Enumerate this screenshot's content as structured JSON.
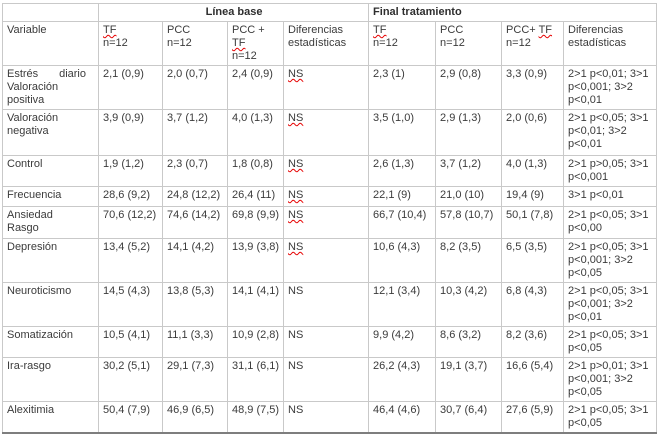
{
  "colors": {
    "spellcheck_underline": "#e60000",
    "grid_border": "#c9c9c9",
    "bottom_border": "#7e7e7e",
    "text": "#3b3b3b"
  },
  "table": {
    "group_headers": [
      {
        "label": "",
        "span": 1,
        "align": "left"
      },
      {
        "label": "Línea base",
        "span": 4,
        "align": "center"
      },
      {
        "label": "Final tratamiento",
        "span": 4,
        "align": "left"
      }
    ],
    "column_headers": [
      {
        "text": "Variable",
        "sub": "",
        "squiggle": ""
      },
      {
        "text": "TF",
        "sub": "n=12",
        "squiggle": "TF"
      },
      {
        "text": "PCC",
        "sub": "n=12",
        "squiggle": ""
      },
      {
        "text": "PCC + TF",
        "sub": "n=12",
        "squiggle": "TF"
      },
      {
        "text": "Diferencias estadísticas",
        "sub": "",
        "squiggle": ""
      },
      {
        "text": "TF",
        "sub": "n=12",
        "squiggle": "TF"
      },
      {
        "text": "PCC",
        "sub": "n=12",
        "squiggle": ""
      },
      {
        "text": "PCC+ TF",
        "sub": "n=12",
        "squiggle": "TF"
      },
      {
        "text": "Diferencias estadísticas",
        "sub": "",
        "squiggle": ""
      }
    ],
    "rows": [
      {
        "variable": "Estrés diario Valoración positiva",
        "justify": true,
        "linea_base": {
          "tf": "2,1 (0,9)",
          "pcc": "2,0 (0,7)",
          "pcc_tf": "2,4 (0,9)",
          "diferencias": "NS",
          "diferencias_misspelled": true
        },
        "final_tratamiento": {
          "tf": "2,3 (1)",
          "pcc": "2,9 (0,8)",
          "pcc_tf": "3,3 (0,9)",
          "diferencias": "2>1 p<0,01; 3>1 p<0,001; 3>2 p<0,01"
        }
      },
      {
        "variable": "Valoración negativa",
        "justify": false,
        "linea_base": {
          "tf": "3,9 (0,9)",
          "pcc": "3,7 (1,2)",
          "pcc_tf": "4,0 (1,3)",
          "diferencias": "NS",
          "diferencias_misspelled": true
        },
        "final_tratamiento": {
          "tf": "3,5 (1,0)",
          "pcc": "2,9 (1,3)",
          "pcc_tf": "2,0 (0,6)",
          "diferencias": "2>1 p<0,05; 3>1 p<0,01; 3>2 p<0,01"
        }
      },
      {
        "variable": "Control",
        "justify": false,
        "linea_base": {
          "tf": "1,9 (1,2)",
          "pcc": "2,3 (0,7)",
          "pcc_tf": "1,8 (0,8)",
          "diferencias": "NS",
          "diferencias_misspelled": true
        },
        "final_tratamiento": {
          "tf": "2,6 (1,3)",
          "pcc": "3,7 (1,2)",
          "pcc_tf": "4,0 (1,3)",
          "diferencias": "2>1 p>0,05; 3>1 p<0,001"
        }
      },
      {
        "variable": "Frecuencia",
        "justify": false,
        "linea_base": {
          "tf": "28,6 (9,2)",
          "pcc": "24,8 (12,2)",
          "pcc_tf": "26,4 (11)",
          "diferencias": "NS",
          "diferencias_misspelled": true
        },
        "final_tratamiento": {
          "tf": "22,1 (9)",
          "pcc": "21,0 (10)",
          "pcc_tf": "19,4 (9)",
          "diferencias": "3>1 p<0,01"
        }
      },
      {
        "variable": "Ansiedad Rasgo",
        "justify": false,
        "linea_base": {
          "tf": "70,6 (12,2)",
          "pcc": "74,6 (14,2)",
          "pcc_tf": "69,8 (9,9)",
          "diferencias": "NS",
          "diferencias_misspelled": true
        },
        "final_tratamiento": {
          "tf": "66,7 (10,4)",
          "pcc": "57,8 (10,7)",
          "pcc_tf": "50,1 (7,8)",
          "diferencias": "2>1 p<0,05; 3>1 p<0,00"
        }
      },
      {
        "variable": "Depresión",
        "justify": false,
        "linea_base": {
          "tf": "13,4 (5,2)",
          "pcc": "14,1 (4,2)",
          "pcc_tf": "13,9 (3,8)",
          "diferencias": "NS",
          "diferencias_misspelled": true
        },
        "final_tratamiento": {
          "tf": "10,6 (4,3)",
          "pcc": "8,2 (3,5)",
          "pcc_tf": "6,5 (3,5)",
          "diferencias": "2>1 p<0,05; 3>1 p<0,001; 3>2 p<0,05"
        }
      },
      {
        "variable": "Neuroticismo",
        "justify": false,
        "linea_base": {
          "tf": "14,5 (4,3)",
          "pcc": "13,8 (5,3)",
          "pcc_tf": "14,1 (4,1)",
          "diferencias": "NS",
          "diferencias_misspelled": false
        },
        "final_tratamiento": {
          "tf": "12,1 (3,4)",
          "pcc": "10,3 (4,2)",
          "pcc_tf": "6,8 (4,3)",
          "diferencias": "2>1 p<0,05; 3>1 p<0,001; 3>2 p<0,01"
        }
      },
      {
        "variable": "Somatización",
        "justify": false,
        "linea_base": {
          "tf": "10,5 (4,1)",
          "pcc": "11,1 (3,3)",
          "pcc_tf": "10,9 (2,8)",
          "diferencias": "NS",
          "diferencias_misspelled": false
        },
        "final_tratamiento": {
          "tf": "9,9 (4,2)",
          "pcc": "8,6 (3,2)",
          "pcc_tf": "8,2 (3,6)",
          "diferencias": "2>1 p<0,05; 3>1 p<0,05"
        }
      },
      {
        "variable": "Ira-rasgo",
        "justify": false,
        "linea_base": {
          "tf": "30,2 (5,1)",
          "pcc": "29,1 (7,3)",
          "pcc_tf": "31,1 (6,1)",
          "diferencias": "NS",
          "diferencias_misspelled": false
        },
        "final_tratamiento": {
          "tf": "26,2 (4,3)",
          "pcc": "19,1 (3,7)",
          "pcc_tf": "16,6 (5,4)",
          "diferencias": "2>1 p>0,01; 3>1 p<0,001; 3>2 p<0,05"
        }
      },
      {
        "variable": "Alexitimia",
        "justify": false,
        "linea_base": {
          "tf": "50,4 (7,9)",
          "pcc": "46,9 (6,5)",
          "pcc_tf": "48,9 (7,5)",
          "diferencias": "NS",
          "diferencias_misspelled": false
        },
        "final_tratamiento": {
          "tf": "46,4 (4,6)",
          "pcc": "30,7 (6,4)",
          "pcc_tf": "27,6 (5,9)",
          "diferencias": "2>1 p<0,05; 3>1 p<0,05"
        }
      }
    ]
  }
}
